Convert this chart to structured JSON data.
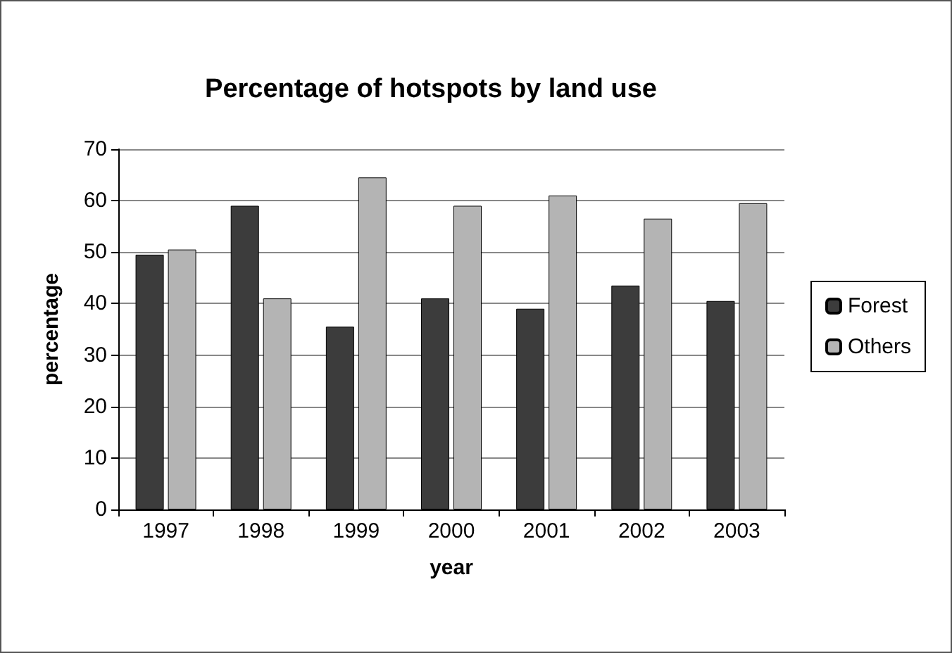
{
  "chart_data": {
    "type": "bar",
    "title": "Percentage of hotspots by land use",
    "xlabel": "year",
    "ylabel": "percentage",
    "categories": [
      "1997",
      "1998",
      "1999",
      "2000",
      "2001",
      "2002",
      "2003"
    ],
    "series": [
      {
        "name": "Forest",
        "color": "#3c3c3c",
        "values": [
          49.5,
          59,
          35.5,
          41,
          39,
          43.5,
          40.5
        ]
      },
      {
        "name": "Others",
        "color": "#b4b4b4",
        "values": [
          50.5,
          41,
          64.5,
          59,
          61,
          56.5,
          59.5
        ]
      }
    ],
    "ylim": [
      0,
      70
    ],
    "yticks": [
      0,
      10,
      20,
      30,
      40,
      50,
      60,
      70
    ],
    "grid": "y",
    "legend": "right"
  }
}
